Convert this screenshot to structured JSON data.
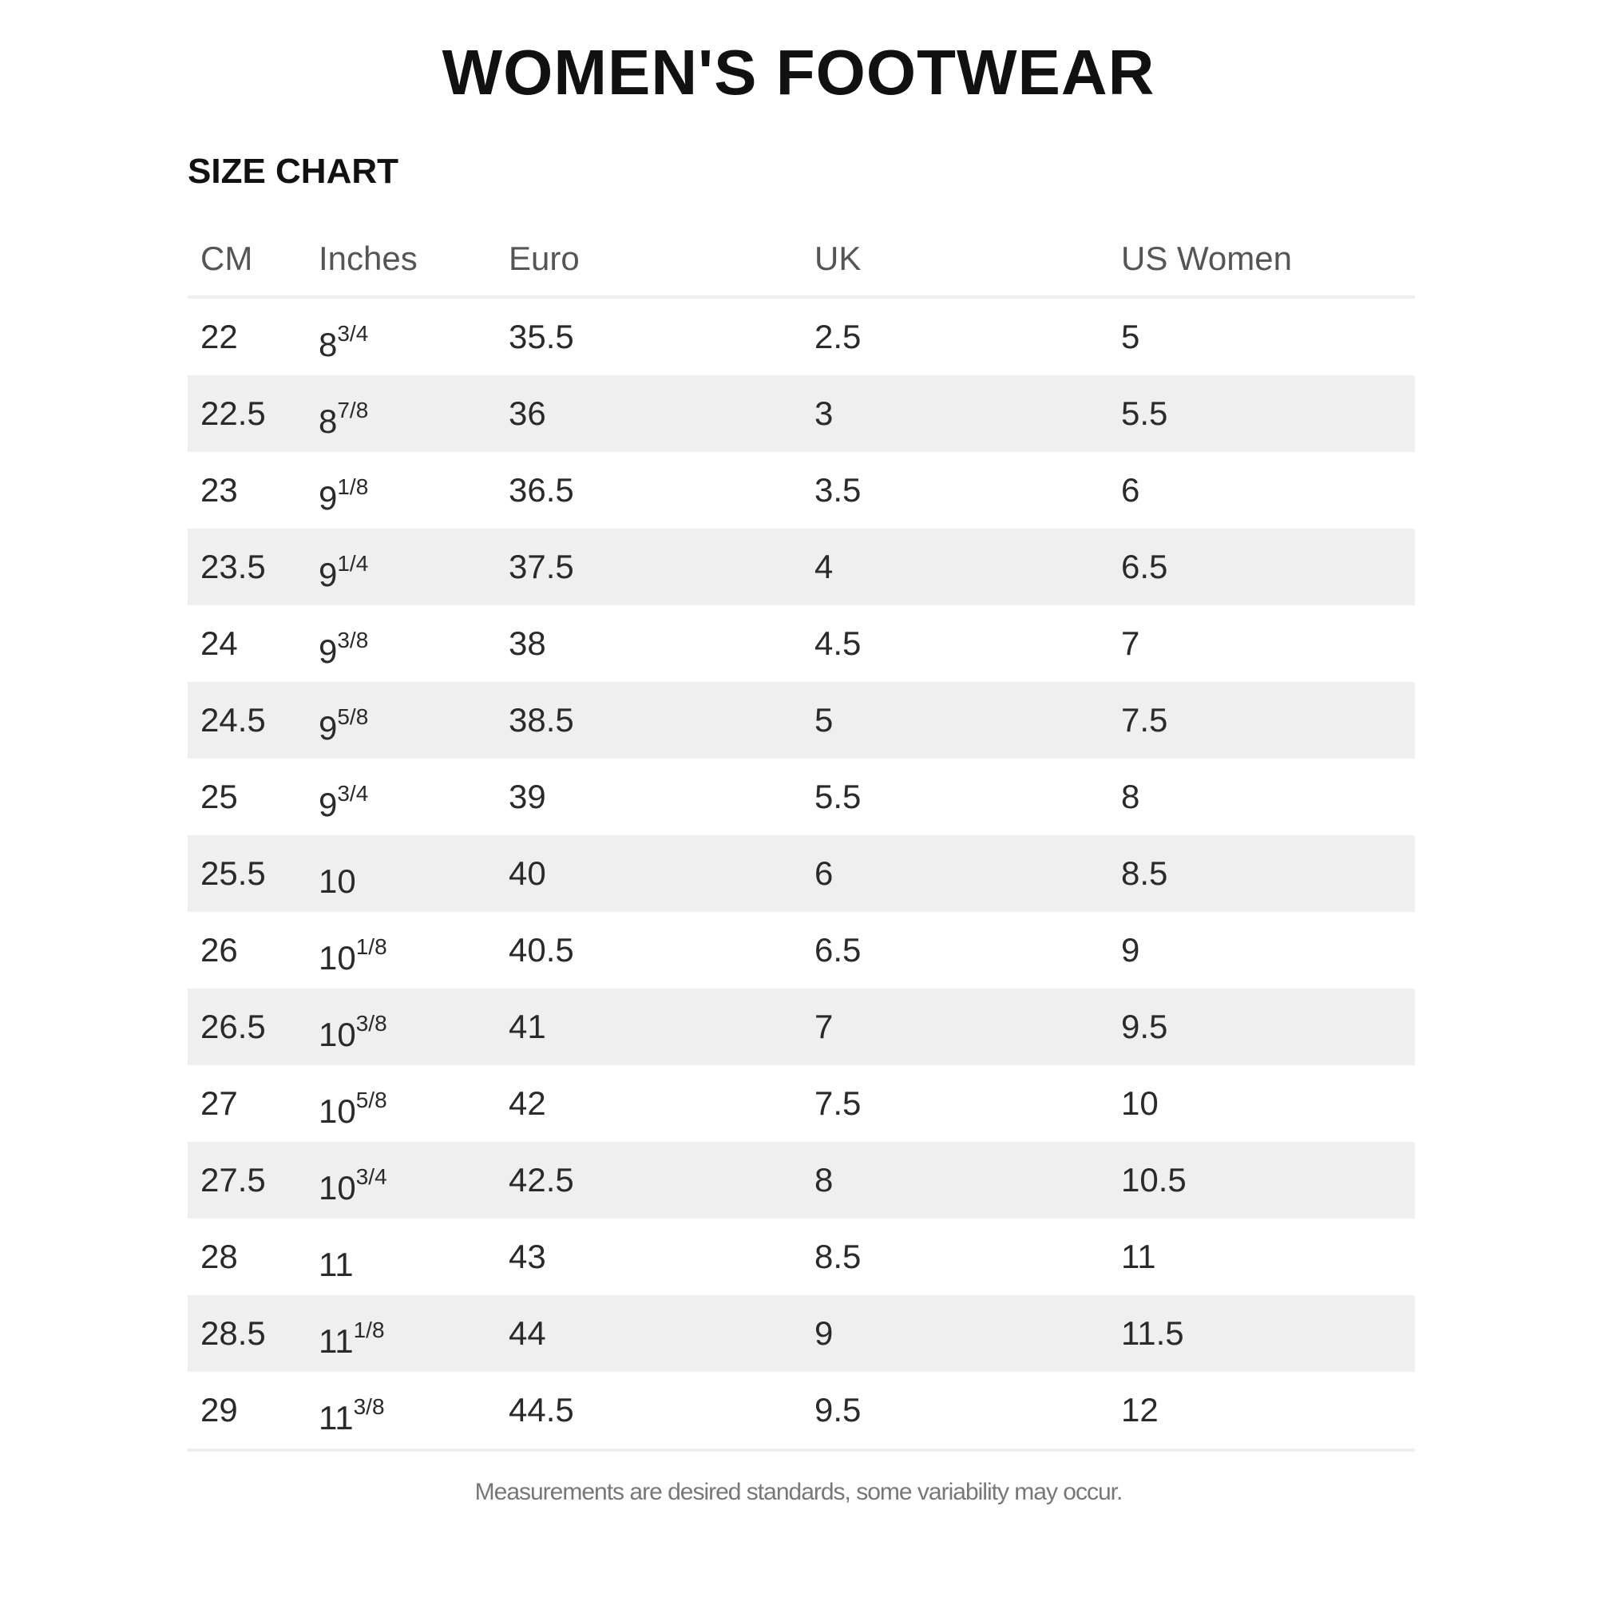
{
  "title": "WOMEN'S FOOTWEAR",
  "subtitle": "SIZE CHART",
  "table": {
    "headers": [
      "CM",
      "Inches",
      "Euro",
      "UK",
      "US Women"
    ],
    "rows": [
      {
        "cm": "22",
        "in_whole": "8",
        "in_frac": "3/4",
        "euro": "35.5",
        "uk": "2.5",
        "us": "5"
      },
      {
        "cm": "22.5",
        "in_whole": "8",
        "in_frac": "7/8",
        "euro": "36",
        "uk": "3",
        "us": "5.5"
      },
      {
        "cm": "23",
        "in_whole": "9",
        "in_frac": "1/8",
        "euro": "36.5",
        "uk": "3.5",
        "us": "6"
      },
      {
        "cm": "23.5",
        "in_whole": "9",
        "in_frac": "1/4",
        "euro": "37.5",
        "uk": "4",
        "us": "6.5"
      },
      {
        "cm": "24",
        "in_whole": "9",
        "in_frac": "3/8",
        "euro": "38",
        "uk": "4.5",
        "us": "7"
      },
      {
        "cm": "24.5",
        "in_whole": "9",
        "in_frac": "5/8",
        "euro": "38.5",
        "uk": "5",
        "us": "7.5"
      },
      {
        "cm": "25",
        "in_whole": "9",
        "in_frac": "3/4",
        "euro": "39",
        "uk": "5.5",
        "us": "8"
      },
      {
        "cm": "25.5",
        "in_whole": "10",
        "in_frac": "",
        "euro": "40",
        "uk": "6",
        "us": "8.5"
      },
      {
        "cm": "26",
        "in_whole": "10",
        "in_frac": "1/8",
        "euro": "40.5",
        "uk": "6.5",
        "us": "9"
      },
      {
        "cm": "26.5",
        "in_whole": "10",
        "in_frac": "3/8",
        "euro": "41",
        "uk": "7",
        "us": "9.5"
      },
      {
        "cm": "27",
        "in_whole": "10",
        "in_frac": "5/8",
        "euro": "42",
        "uk": "7.5",
        "us": "10"
      },
      {
        "cm": "27.5",
        "in_whole": "10",
        "in_frac": "3/4",
        "euro": "42.5",
        "uk": "8",
        "us": "10.5"
      },
      {
        "cm": "28",
        "in_whole": "11",
        "in_frac": "",
        "euro": "43",
        "uk": "8.5",
        "us": "11"
      },
      {
        "cm": "28.5",
        "in_whole": "11",
        "in_frac": "1/8",
        "euro": "44",
        "uk": "9",
        "us": "11.5"
      },
      {
        "cm": "29",
        "in_whole": "11",
        "in_frac": "3/8",
        "euro": "44.5",
        "uk": "9.5",
        "us": "12"
      }
    ]
  },
  "note": "Measurements are desired standards, some variability may occur.",
  "colors": {
    "stripe": "#efefef",
    "divider": "#eeeeee",
    "text": "#2a2a2a"
  }
}
